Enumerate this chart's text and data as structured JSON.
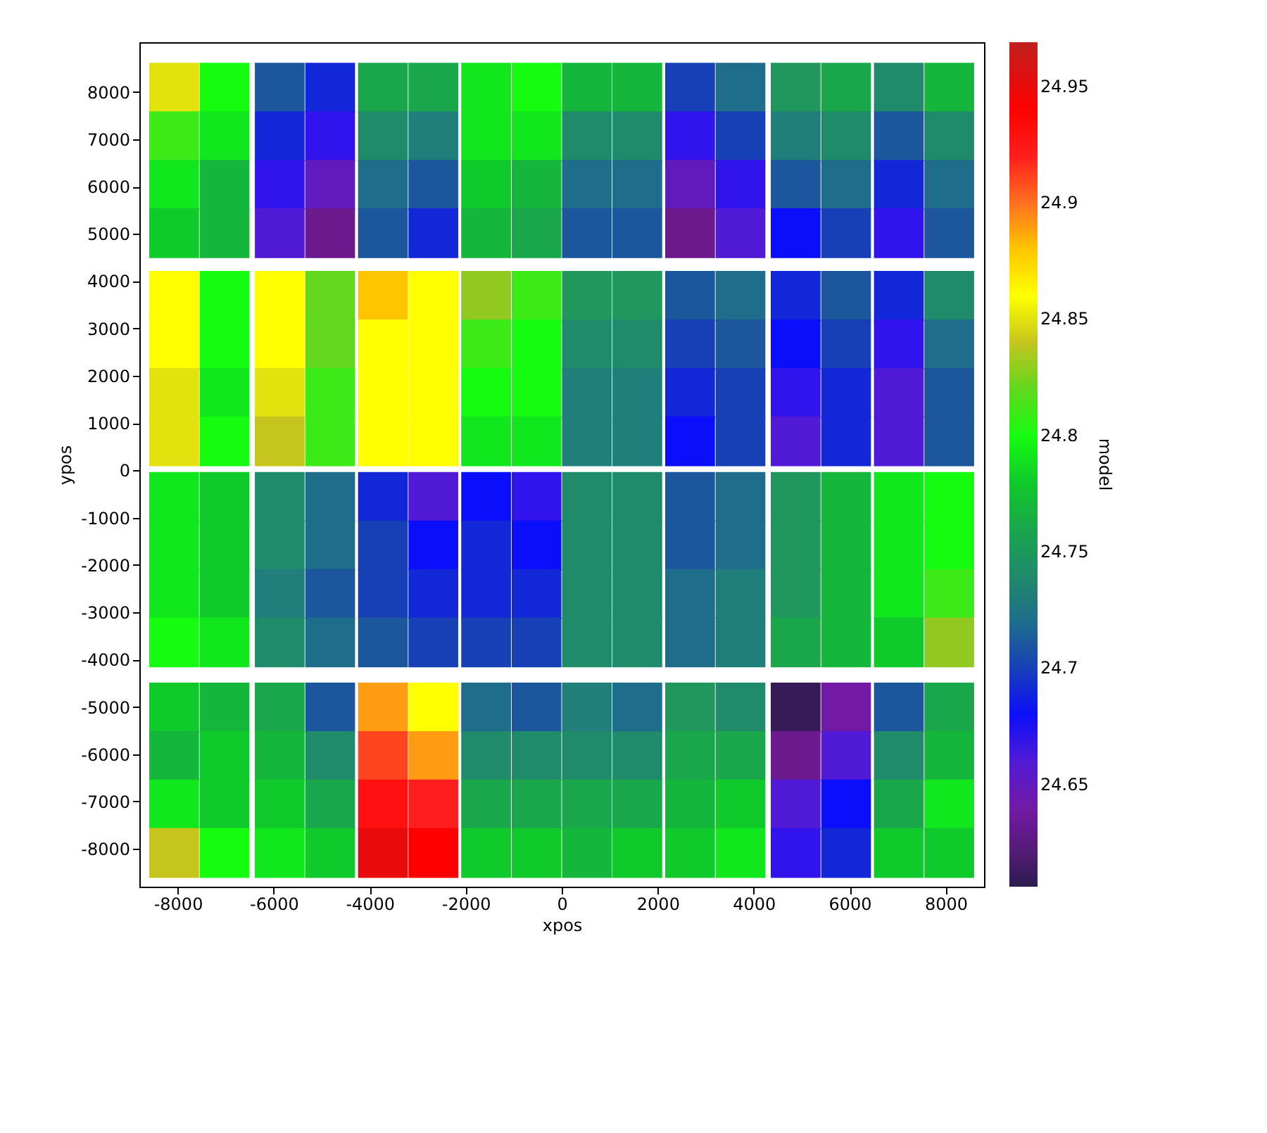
{
  "chart_data": {
    "type": "scatter",
    "xlabel": "xpos",
    "ylabel": "ypos",
    "clabel": "model",
    "marker": "square",
    "grid": false,
    "xlim": [
      -8800,
      8800
    ],
    "ylim": [
      -8800,
      9050
    ],
    "xticks": [
      -8000,
      -6000,
      -4000,
      -2000,
      0,
      2000,
      4000,
      6000,
      8000
    ],
    "yticks": [
      -8000,
      -7000,
      -6000,
      -5000,
      -4000,
      -3000,
      -2000,
      -1000,
      0,
      1000,
      2000,
      3000,
      4000,
      5000,
      6000,
      7000,
      8000
    ],
    "clim": [
      24.606,
      24.969
    ],
    "cticks": [
      24.65,
      24.7,
      24.75,
      24.8,
      24.85,
      24.9,
      24.95
    ],
    "x": [
      -8075,
      -7025,
      -8075,
      -7025,
      -8075,
      -7025,
      -8075,
      -7025,
      -5875,
      -4825,
      -5875,
      -4825,
      -5875,
      -4825,
      -5875,
      -4825,
      -3725,
      -2675,
      -3725,
      -2675,
      -3725,
      -2675,
      -3725,
      -2675,
      -1575,
      -525,
      -1575,
      -525,
      -1575,
      -525,
      -1575,
      -525,
      525,
      1575,
      525,
      1575,
      525,
      1575,
      525,
      1575,
      2675,
      3725,
      2675,
      3725,
      2675,
      3725,
      2675,
      3725,
      4875,
      5925,
      4875,
      5925,
      4875,
      5925,
      4875,
      5925,
      7025,
      8075,
      7025,
      8075,
      7025,
      8075,
      7025,
      8075,
      -8075,
      -7025,
      -8075,
      -7025,
      -8075,
      -7025,
      -8075,
      -7025,
      -5875,
      -4825,
      -5875,
      -4825,
      -5875,
      -4825,
      -5875,
      -4825,
      -3725,
      -2675,
      -3725,
      -2675,
      -3725,
      -2675,
      -3725,
      -2675,
      -1575,
      -525,
      -1575,
      -525,
      -1575,
      -525,
      -1575,
      -525,
      525,
      1575,
      525,
      1575,
      525,
      1575,
      525,
      1575,
      2675,
      3725,
      2675,
      3725,
      2675,
      3725,
      2675,
      3725,
      4875,
      5925,
      4875,
      5925,
      4875,
      5925,
      4875,
      5925,
      7025,
      8075,
      7025,
      8075,
      7025,
      8075,
      7025,
      8075,
      -8075,
      -7025,
      -8075,
      -7025,
      -8075,
      -7025,
      -8075,
      -7025,
      -5875,
      -4825,
      -5875,
      -4825,
      -5875,
      -4825,
      -5875,
      -4825,
      -3725,
      -2675,
      -3725,
      -2675,
      -3725,
      -2675,
      -3725,
      -2675,
      -1575,
      -525,
      -1575,
      -525,
      -1575,
      -525,
      -1575,
      -525,
      525,
      1575,
      525,
      1575,
      525,
      1575,
      525,
      1575,
      2675,
      3725,
      2675,
      3725,
      2675,
      3725,
      2675,
      3725,
      4875,
      5925,
      4875,
      5925,
      4875,
      5925,
      4875,
      5925,
      7025,
      8075,
      7025,
      8075,
      7025,
      8075,
      7025,
      8075,
      -8075,
      -7025,
      -8075,
      -7025,
      -8075,
      -7025,
      -8075,
      -7025,
      -5875,
      -4825,
      -5875,
      -4825,
      -5875,
      -4825,
      -5875,
      -4825,
      -3725,
      -2675,
      -3725,
      -2675,
      -3725,
      -2675,
      -3725,
      -2675,
      -1575,
      -525,
      -1575,
      -525,
      -1575,
      -525,
      -1575,
      -525,
      525,
      1575,
      525,
      1575,
      525,
      1575,
      525,
      1575,
      2675,
      3725,
      2675,
      3725,
      2675,
      3725,
      2675,
      3725,
      4875,
      5925,
      4875,
      5925,
      4875,
      5925,
      4875,
      5925,
      7025,
      8075,
      7025,
      8075,
      7025,
      8075,
      7025,
      8075
    ],
    "values": [
      8088,
      8088,
      7063,
      7063,
      6038,
      6038,
      5013,
      5013,
      8088,
      8088,
      7063,
      7063,
      6038,
      6038,
      5013,
      5013,
      8088,
      8088,
      7063,
      7063,
      6038,
      6038,
      5013,
      5013,
      8088,
      8088,
      7063,
      7063,
      6038,
      6038,
      5013,
      5013,
      8088,
      8088,
      7063,
      7063,
      6038,
      6038,
      5013,
      5013,
      8088,
      8088,
      7063,
      7063,
      6038,
      6038,
      5013,
      5013,
      8088,
      8088,
      7063,
      7063,
      6038,
      6038,
      5013,
      5013,
      8088,
      8088,
      7063,
      7063,
      6038,
      6038,
      5013,
      5013,
      3688,
      3688,
      2663,
      2663,
      1638,
      1638,
      613,
      613,
      3688,
      3688,
      2663,
      2663,
      1638,
      1638,
      613,
      613,
      3688,
      3688,
      2663,
      2663,
      1638,
      1638,
      613,
      613,
      3688,
      3688,
      2663,
      2663,
      1638,
      1638,
      613,
      613,
      3688,
      3688,
      2663,
      2663,
      1638,
      1638,
      613,
      613,
      3688,
      3688,
      2663,
      2663,
      1638,
      1638,
      613,
      613,
      3688,
      3688,
      2663,
      2663,
      1638,
      1638,
      613,
      613,
      3688,
      3688,
      2663,
      2663,
      1638,
      1638,
      613,
      613,
      -562,
      -562,
      -1587,
      -1587,
      -2612,
      -2612,
      -3637,
      -3637,
      -562,
      -562,
      -1587,
      -1587,
      -2612,
      -2612,
      -3637,
      -3637,
      -562,
      -562,
      -1587,
      -1587,
      -2612,
      -2612,
      -3637,
      -3637,
      -562,
      -562,
      -1587,
      -1587,
      -2612,
      -2612,
      -3637,
      -3637,
      -562,
      -562,
      -1587,
      -1587,
      -2612,
      -2612,
      -3637,
      -3637,
      -562,
      -562,
      -1587,
      -1587,
      -2612,
      -2612,
      -3637,
      -3637,
      -562,
      -562,
      -1587,
      -1587,
      -2612,
      -2612,
      -3637,
      -3637,
      -562,
      -562,
      -1587,
      -1587,
      -2612,
      -2612,
      -3637,
      -3637,
      -5012,
      -5012,
      -6037,
      -6037,
      -7062,
      -7062,
      -8087,
      -8087,
      -5012,
      -5012,
      -6037,
      -6037,
      -7062,
      -7062,
      -8087,
      -8087,
      -5012,
      -5012,
      -6037,
      -6037,
      -7062,
      -7062,
      -8087,
      -8087,
      -5012,
      -5012,
      -6037,
      -6037,
      -7062,
      -7062,
      -8087,
      -8087,
      -5012,
      -5012,
      -6037,
      -6037,
      -7062,
      -7062,
      -8087,
      -8087,
      -5012,
      -5012,
      -6037,
      -6037,
      -7062,
      -7062,
      -8087,
      -8087,
      -5012,
      -5012,
      -6037,
      -6037,
      -7062,
      -7062,
      -8087,
      -8087,
      -5012,
      -5012,
      -6037,
      -6037,
      -7062,
      -7062,
      -8087,
      -8087
    ],
    "cvalues": [
      24.85,
      24.8,
      24.81,
      24.79,
      24.79,
      24.77,
      24.78,
      24.77,
      24.71,
      24.69,
      24.69,
      24.67,
      24.67,
      24.65,
      24.66,
      24.63,
      24.76,
      24.76,
      24.74,
      24.73,
      24.72,
      24.71,
      24.71,
      24.69,
      24.79,
      24.8,
      24.79,
      24.79,
      24.78,
      24.77,
      24.77,
      24.76,
      24.77,
      24.77,
      24.74,
      24.74,
      24.72,
      24.72,
      24.71,
      24.71,
      24.7,
      24.72,
      24.67,
      24.7,
      24.65,
      24.67,
      24.63,
      24.66,
      24.75,
      24.76,
      24.73,
      24.74,
      24.71,
      24.72,
      24.68,
      24.7,
      24.74,
      24.77,
      24.71,
      24.74,
      24.69,
      24.72,
      24.67,
      24.71,
      24.86,
      24.8,
      24.86,
      24.8,
      24.85,
      24.79,
      24.85,
      24.8,
      24.86,
      24.82,
      24.86,
      24.82,
      24.85,
      24.81,
      24.84,
      24.81,
      24.88,
      24.86,
      24.86,
      24.86,
      24.86,
      24.86,
      24.86,
      24.86,
      24.83,
      24.81,
      24.81,
      24.8,
      24.8,
      24.8,
      24.79,
      24.79,
      24.75,
      24.75,
      24.74,
      24.74,
      24.73,
      24.73,
      24.73,
      24.73,
      24.71,
      24.72,
      24.7,
      24.71,
      24.69,
      24.7,
      24.68,
      24.7,
      24.69,
      24.71,
      24.68,
      24.7,
      24.67,
      24.69,
      24.66,
      24.69,
      24.69,
      24.74,
      24.67,
      24.72,
      24.66,
      24.71,
      24.66,
      24.71,
      24.79,
      24.78,
      24.79,
      24.78,
      24.79,
      24.78,
      24.8,
      24.79,
      24.74,
      24.72,
      24.74,
      24.72,
      24.73,
      24.71,
      24.74,
      24.72,
      24.69,
      24.66,
      24.7,
      24.68,
      24.7,
      24.69,
      24.71,
      24.7,
      24.68,
      24.67,
      24.69,
      24.68,
      24.69,
      24.69,
      24.7,
      24.7,
      24.74,
      24.74,
      24.74,
      24.74,
      24.74,
      24.74,
      24.74,
      24.74,
      24.71,
      24.72,
      24.71,
      24.72,
      24.72,
      24.73,
      24.72,
      24.73,
      24.75,
      24.77,
      24.75,
      24.77,
      24.75,
      24.77,
      24.76,
      24.77,
      24.79,
      24.8,
      24.79,
      24.8,
      24.79,
      24.81,
      24.78,
      24.83,
      24.78,
      24.77,
      24.77,
      24.78,
      24.79,
      24.78,
      24.84,
      24.8,
      24.76,
      24.71,
      24.77,
      24.74,
      24.78,
      24.76,
      24.79,
      24.78,
      24.89,
      24.86,
      24.91,
      24.89,
      24.93,
      24.92,
      24.95,
      24.94,
      24.72,
      24.71,
      24.74,
      24.74,
      24.76,
      24.76,
      24.78,
      24.78,
      24.73,
      24.72,
      24.74,
      24.74,
      24.76,
      24.76,
      24.77,
      24.78,
      24.75,
      24.74,
      24.76,
      24.76,
      24.77,
      24.78,
      24.78,
      24.79,
      24.61,
      24.64,
      24.63,
      24.66,
      24.66,
      24.68,
      24.67,
      24.69,
      24.71,
      24.76,
      24.74,
      24.77,
      24.76,
      24.79,
      24.78,
      24.78
    ]
  }
}
